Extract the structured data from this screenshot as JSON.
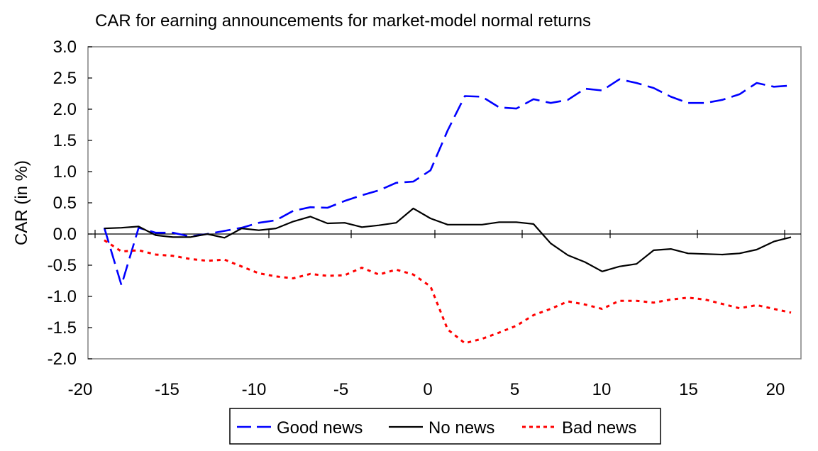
{
  "chart_data": {
    "type": "line",
    "title": "CAR for earning announcements for market-model normal returns",
    "xlabel": "",
    "ylabel": "CAR (in %)",
    "xlim": [
      -20,
      21
    ],
    "ylim": [
      -2.0,
      3.0
    ],
    "x_ticks": [
      -20,
      -15,
      -10,
      -5,
      0,
      5,
      10,
      15,
      20
    ],
    "y_ticks": [
      3.0,
      2.5,
      2.0,
      1.5,
      1.0,
      0.5,
      0.0,
      -0.5,
      -1.0,
      -1.5,
      -2.0
    ],
    "x_tick_labels": [
      "-20",
      "-15",
      "-10",
      "-5",
      "0",
      "5",
      "10",
      "15",
      "20"
    ],
    "y_tick_labels": [
      "3.0",
      "2.5",
      "2.0",
      "1.5",
      "1.0",
      "0.5",
      "0.0",
      "-0.5",
      "-1.0",
      "-1.5",
      "-2.0"
    ],
    "grid": false,
    "legend_position": "bottom",
    "x": [
      -19,
      -18,
      -17,
      -16,
      -15,
      -14,
      -13,
      -12,
      -11,
      -10,
      -9,
      -8,
      -7,
      -6,
      -5,
      -4,
      -3,
      -2,
      -1,
      0,
      1,
      2,
      3,
      4,
      5,
      6,
      7,
      8,
      9,
      10,
      11,
      12,
      13,
      14,
      15,
      16,
      17,
      18,
      19,
      20,
      21
    ],
    "series": [
      {
        "name": "Good news",
        "color": "#0000ff",
        "dash": "dashed",
        "values": [
          0.1,
          -0.82,
          0.1,
          0.02,
          0.02,
          -0.04,
          0.0,
          0.05,
          0.1,
          0.18,
          0.22,
          0.37,
          0.43,
          0.42,
          0.53,
          0.62,
          0.7,
          0.82,
          0.84,
          1.02,
          1.66,
          2.21,
          2.2,
          2.03,
          2.01,
          2.16,
          2.1,
          2.15,
          2.33,
          2.3,
          2.48,
          2.42,
          2.34,
          2.2,
          2.1,
          2.1,
          2.15,
          2.24,
          2.42,
          2.36,
          2.38
        ]
      },
      {
        "name": "No news",
        "color": "#000000",
        "dash": "solid",
        "values": [
          0.09,
          0.1,
          0.12,
          -0.02,
          -0.05,
          -0.05,
          0.0,
          -0.06,
          0.09,
          0.06,
          0.09,
          0.2,
          0.28,
          0.17,
          0.18,
          0.11,
          0.14,
          0.18,
          0.41,
          0.25,
          0.15,
          0.15,
          0.15,
          0.19,
          0.19,
          0.16,
          -0.15,
          -0.34,
          -0.45,
          -0.6,
          -0.52,
          -0.48,
          -0.26,
          -0.24,
          -0.31,
          -0.32,
          -0.33,
          -0.31,
          -0.25,
          -0.12,
          -0.05
        ]
      },
      {
        "name": "Bad news",
        "color": "#ff0000",
        "dash": "dotted",
        "values": [
          -0.1,
          -0.28,
          -0.26,
          -0.33,
          -0.35,
          -0.4,
          -0.43,
          -0.41,
          -0.52,
          -0.63,
          -0.68,
          -0.71,
          -0.64,
          -0.67,
          -0.66,
          -0.54,
          -0.65,
          -0.57,
          -0.65,
          -0.84,
          -1.53,
          -1.75,
          -1.68,
          -1.58,
          -1.47,
          -1.3,
          -1.2,
          -1.08,
          -1.13,
          -1.2,
          -1.07,
          -1.07,
          -1.1,
          -1.05,
          -1.02,
          -1.05,
          -1.12,
          -1.19,
          -1.14,
          -1.2,
          -1.26
        ]
      }
    ]
  }
}
